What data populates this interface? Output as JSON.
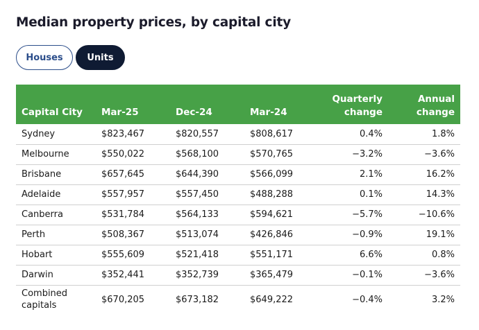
{
  "title": "Median property prices, by capital city",
  "toggles": {
    "houses_label": "Houses",
    "units_label": "Units",
    "selected": "Units"
  },
  "colors": {
    "header_green": "#47a147",
    "selected_toggle": "#0f1b33",
    "outline_toggle": "#2b4d8a"
  },
  "table": {
    "headers": {
      "city": "Capital City",
      "mar25": "Mar-25",
      "dec24": "Dec-24",
      "mar24": "Mar-24",
      "quarterly_line1": "Quarterly",
      "quarterly_line2": "change",
      "annual_line1": "Annual",
      "annual_line2": "change"
    },
    "rows": [
      {
        "city": "Sydney",
        "mar25": "$823,467",
        "dec24": "$820,557",
        "mar24": "$808,617",
        "quarterly": "0.4%",
        "annual": "1.8%"
      },
      {
        "city": "Melbourne",
        "mar25": "$550,022",
        "dec24": "$568,100",
        "mar24": "$570,765",
        "quarterly": "−3.2%",
        "annual": "−3.6%"
      },
      {
        "city": "Brisbane",
        "mar25": "$657,645",
        "dec24": "$644,390",
        "mar24": "$566,099",
        "quarterly": "2.1%",
        "annual": "16.2%"
      },
      {
        "city": "Adelaide",
        "mar25": "$557,957",
        "dec24": "$557,450",
        "mar24": "$488,288",
        "quarterly": "0.1%",
        "annual": "14.3%"
      },
      {
        "city": "Canberra",
        "mar25": "$531,784",
        "dec24": "$564,133",
        "mar24": "$594,621",
        "quarterly": "−5.7%",
        "annual": "−10.6%"
      },
      {
        "city": "Perth",
        "mar25": "$508,367",
        "dec24": "$513,074",
        "mar24": "$426,846",
        "quarterly": "−0.9%",
        "annual": "19.1%"
      },
      {
        "city": "Hobart",
        "mar25": "$555,609",
        "dec24": "$521,418",
        "mar24": "$551,171",
        "quarterly": "6.6%",
        "annual": "0.8%"
      },
      {
        "city": "Darwin",
        "mar25": "$352,441",
        "dec24": "$352,739",
        "mar24": "$365,479",
        "quarterly": "−0.1%",
        "annual": "−3.6%"
      },
      {
        "city": "Combined capitals",
        "mar25": "$670,205",
        "dec24": "$673,182",
        "mar24": "$649,222",
        "quarterly": "−0.4%",
        "annual": "3.2%"
      }
    ]
  }
}
